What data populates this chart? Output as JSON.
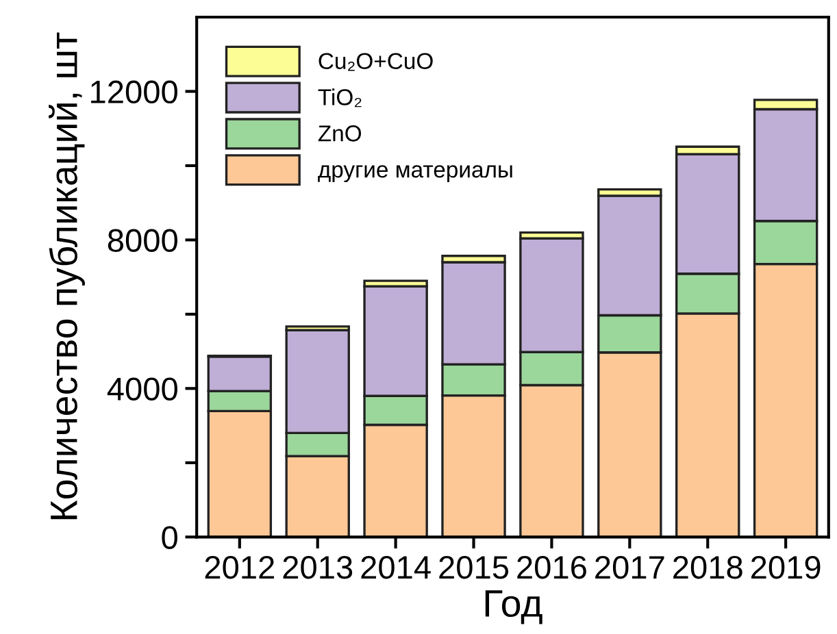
{
  "chart_data": {
    "type": "bar",
    "stacked": true,
    "xlabel": "Год",
    "ylabel": "Количество публикаций, шт",
    "categories": [
      "2012",
      "2013",
      "2014",
      "2015",
      "2016",
      "2017",
      "2018",
      "2019"
    ],
    "series": [
      {
        "name": "другие материалы",
        "color": "#fdc896",
        "values": [
          3390,
          2180,
          3020,
          3810,
          4090,
          4970,
          6020,
          7350
        ]
      },
      {
        "name": "ZnO",
        "color": "#9bd69b",
        "values": [
          540,
          620,
          780,
          840,
          890,
          1000,
          1070,
          1160
        ]
      },
      {
        "name": "TiO₂",
        "color": "#bfaed6",
        "values": [
          930,
          2770,
          2950,
          2750,
          3060,
          3220,
          3220,
          3010
        ]
      },
      {
        "name": "Cu₂O+CuO",
        "color": "#fdfd96",
        "values": [
          20,
          100,
          150,
          170,
          160,
          170,
          200,
          250
        ]
      }
    ],
    "ylim": [
      0,
      14000
    ],
    "yticks": [
      0,
      {
        "value": 2000,
        "label": null
      },
      4000,
      {
        "value": 6000,
        "label": null
      },
      8000,
      {
        "value": 10000,
        "label": null
      },
      12000
    ],
    "grid": false,
    "legend": "top left"
  }
}
